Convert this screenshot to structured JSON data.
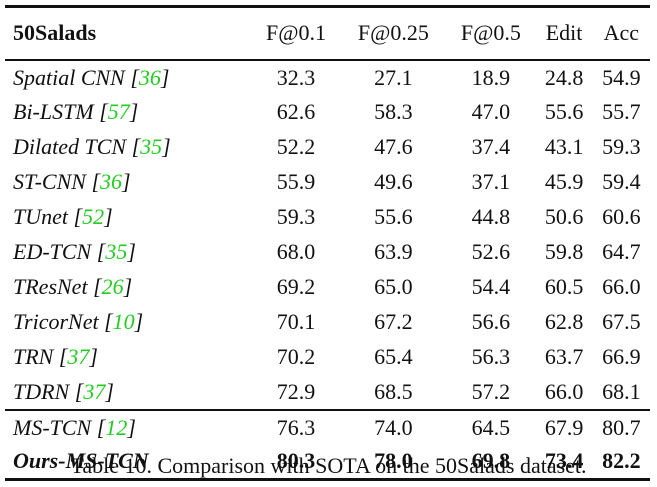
{
  "table": {
    "headers": [
      "50Salads",
      "F@0.1",
      "F@0.25",
      "F@0.5",
      "Edit",
      "Acc"
    ],
    "rows": [
      {
        "method": "Spatial CNN",
        "cite": "36",
        "values": [
          "32.3",
          "27.1",
          "18.9",
          "24.8",
          "54.9"
        ]
      },
      {
        "method": "Bi-LSTM",
        "cite": "57",
        "values": [
          "62.6",
          "58.3",
          "47.0",
          "55.6",
          "55.7"
        ]
      },
      {
        "method": "Dilated TCN",
        "cite": "35",
        "values": [
          "52.2",
          "47.6",
          "37.4",
          "43.1",
          "59.3"
        ]
      },
      {
        "method": "ST-CNN",
        "cite": "36",
        "values": [
          "55.9",
          "49.6",
          "37.1",
          "45.9",
          "59.4"
        ]
      },
      {
        "method": "TUnet",
        "cite": "52",
        "values": [
          "59.3",
          "55.6",
          "44.8",
          "50.6",
          "60.6"
        ]
      },
      {
        "method": "ED-TCN",
        "cite": "35",
        "values": [
          "68.0",
          "63.9",
          "52.6",
          "59.8",
          "64.7"
        ]
      },
      {
        "method": "TResNet",
        "cite": "26",
        "values": [
          "69.2",
          "65.0",
          "54.4",
          "60.5",
          "66.0"
        ]
      },
      {
        "method": "TricorNet",
        "cite": "10",
        "values": [
          "70.1",
          "67.2",
          "56.6",
          "62.8",
          "67.5"
        ]
      },
      {
        "method": "TRN",
        "cite": "37",
        "values": [
          "70.2",
          "65.4",
          "56.3",
          "63.7",
          "66.9"
        ]
      },
      {
        "method": "TDRN",
        "cite": "37",
        "values": [
          "72.9",
          "68.5",
          "57.2",
          "66.0",
          "68.1"
        ]
      },
      {
        "method": "MS-TCN",
        "cite": "12",
        "values": [
          "76.3",
          "74.0",
          "64.5",
          "67.9",
          "80.7"
        ]
      },
      {
        "method": "Ours-MS-TCN",
        "cite": "",
        "values": [
          "80.3",
          "78.0",
          "69.8",
          "73.4",
          "82.2"
        ]
      }
    ]
  },
  "caption": "Table 10. Comparison with SOTA on the 50Salads dataset.",
  "colors": {
    "citation": "#22cc22",
    "text": "#111111"
  }
}
